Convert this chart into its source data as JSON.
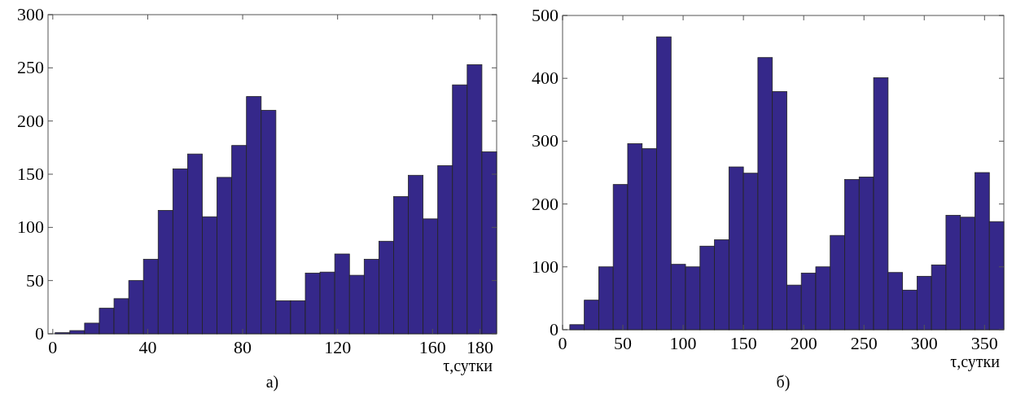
{
  "chart_data": [
    {
      "type": "histogram",
      "bins": [
        1,
        7.2,
        13.4,
        19.6,
        25.8,
        32,
        38.2,
        44.4,
        50.6,
        56.8,
        63,
        69.2,
        75.4,
        81.6,
        87.8,
        94,
        100.2,
        106.4,
        112.6,
        118.8,
        125,
        131.2,
        137.4,
        143.6,
        149.8,
        156,
        162.2,
        168.4,
        174.6,
        180.8,
        187
      ],
      "values": [
        1,
        3,
        10,
        24,
        33,
        50,
        70,
        116,
        155,
        169,
        110,
        147,
        177,
        223,
        210,
        31,
        31,
        57,
        58,
        75,
        55,
        70,
        87,
        129,
        149,
        108,
        158,
        234,
        253,
        171
      ],
      "color": "#35288a",
      "xlim": [
        -2,
        187
      ],
      "xticks": [
        0,
        40,
        80,
        120,
        160,
        180
      ],
      "ylim": [
        0,
        300
      ],
      "yticks": [
        0,
        50,
        100,
        150,
        200,
        250,
        300
      ],
      "xlabel": "τ,сутки",
      "annotations": [
        "а)"
      ],
      "grid": false
    },
    {
      "type": "histogram",
      "bins": [
        6,
        18,
        30,
        42,
        54,
        66,
        78,
        90,
        102,
        114,
        126,
        138,
        150,
        162,
        174,
        186,
        198,
        210,
        222,
        234,
        246,
        258,
        270,
        282,
        294,
        306,
        318,
        330,
        342,
        354,
        366
      ],
      "values": [
        8,
        47,
        100,
        231,
        296,
        288,
        466,
        104,
        100,
        133,
        143,
        259,
        249,
        433,
        379,
        71,
        90,
        100,
        150,
        239,
        243,
        401,
        91,
        63,
        85,
        103,
        182,
        179,
        250,
        172
      ],
      "color": "#35288a",
      "xlim": [
        0,
        366
      ],
      "xticks": [
        0,
        50,
        100,
        150,
        200,
        250,
        300,
        350
      ],
      "ylim": [
        0,
        500
      ],
      "yticks": [
        0,
        100,
        200,
        300,
        400,
        500
      ],
      "xlabel": "τ,сутки",
      "annotations": [
        "б)"
      ],
      "grid": false
    }
  ]
}
